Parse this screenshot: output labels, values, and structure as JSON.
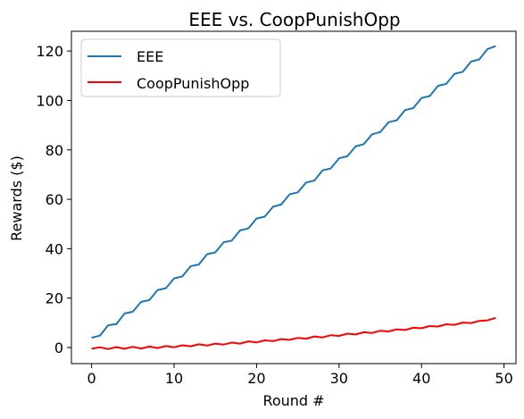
{
  "chart_data": {
    "type": "line",
    "title": "EEE vs. CoopPunishOpp",
    "xlabel": "Round #",
    "ylabel": "Rewards ($)",
    "xlim": [
      -2.45,
      51.45
    ],
    "ylim": [
      -6.5,
      128
    ],
    "xticks": [
      0,
      10,
      20,
      30,
      40,
      50
    ],
    "yticks": [
      0,
      20,
      40,
      60,
      80,
      100,
      120
    ],
    "grid": false,
    "legend_position": "upper-left",
    "x": [
      0,
      1,
      2,
      3,
      4,
      5,
      6,
      7,
      8,
      9,
      10,
      11,
      12,
      13,
      14,
      15,
      16,
      17,
      18,
      19,
      20,
      21,
      22,
      23,
      24,
      25,
      26,
      27,
      28,
      29,
      30,
      31,
      32,
      33,
      34,
      35,
      36,
      37,
      38,
      39,
      40,
      41,
      42,
      43,
      44,
      45,
      46,
      47,
      48,
      49
    ],
    "series": [
      {
        "name": "EEE",
        "color": "#1f77b4",
        "values": [
          4.0,
          4.8,
          9.0,
          9.5,
          13.8,
          14.5,
          18.5,
          19.2,
          23.3,
          24.0,
          28.0,
          28.8,
          32.9,
          33.6,
          37.8,
          38.5,
          42.6,
          43.3,
          47.4,
          48.2,
          52.2,
          53.0,
          57.0,
          57.9,
          62.0,
          62.8,
          66.8,
          67.6,
          71.7,
          72.5,
          76.6,
          77.4,
          81.4,
          82.3,
          86.3,
          87.2,
          91.2,
          92.0,
          96.1,
          96.9,
          101.0,
          101.8,
          105.9,
          106.7,
          110.8,
          111.6,
          115.7,
          116.6,
          120.8,
          122.0
        ]
      },
      {
        "name": "CoopPunishOpp",
        "color": "#ff0000",
        "values": [
          -0.5,
          0.1,
          -0.6,
          0.2,
          -0.5,
          0.3,
          -0.4,
          0.4,
          -0.2,
          0.6,
          0.1,
          0.9,
          0.5,
          1.3,
          0.8,
          1.6,
          1.2,
          2.0,
          1.6,
          2.5,
          2.1,
          2.9,
          2.6,
          3.4,
          3.1,
          3.9,
          3.6,
          4.5,
          4.1,
          5.0,
          4.7,
          5.6,
          5.3,
          6.2,
          5.9,
          6.8,
          6.5,
          7.4,
          7.1,
          8.0,
          7.8,
          8.7,
          8.5,
          9.4,
          9.2,
          10.1,
          9.9,
          10.8,
          11.0,
          12.0
        ]
      }
    ]
  }
}
